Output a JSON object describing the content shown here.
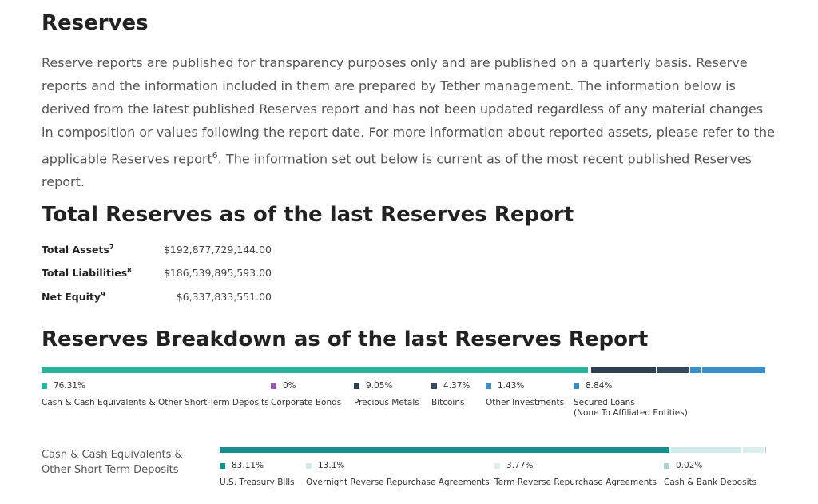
{
  "header": {
    "title": "Reserves"
  },
  "intro": {
    "parts": [
      "Reserve reports are published for transparency purposes only and are published on a quarterly basis. Reserve reports and the information included in them are prepared by Tether management. The information below is derived from the latest published Reserves report and has not been updated regardless of any material changes in composition or values following the report date.  For more information about reported assets, please refer to the applicable Reserves report",
      "6",
      ". The information set out below is current as of the most recent published Reserves report."
    ]
  },
  "totals": {
    "title": "Total Reserves as of the last Reserves Report",
    "rows": [
      {
        "label": "Total Assets",
        "note": "7",
        "value": "$192,877,729,144.00"
      },
      {
        "label": "Total Liabilities",
        "note": "8",
        "value": "$186,539,895,593.00"
      },
      {
        "label": "Net Equity",
        "note": "9",
        "value": "$6,337,833,551.00"
      }
    ]
  },
  "breakdown": {
    "title": "Reserves Breakdown as of the last Reserves Report"
  },
  "chart_data": [
    {
      "type": "stacked-bar",
      "categories": [
        "Cash & Cash Equivalents & Other Short-Term Deposits",
        "Corporate Bonds",
        "Precious Metals",
        "Bitcoins",
        "Other Investments",
        "Secured Loans\n(None To Affiliated Entities)"
      ],
      "values": [
        76.31,
        0,
        9.05,
        4.37,
        1.43,
        8.84
      ],
      "value_labels": [
        "76.31%",
        "0%",
        "9.05%",
        "4.37%",
        "1.43%",
        "8.84%"
      ],
      "colors": [
        "#2ab39b",
        "#9b59b6",
        "#2c3e50",
        "#34495e",
        "#3b8fc7"
      ]
    },
    {
      "type": "stacked-bar",
      "title": "Cash & Cash Equivalents &\nOther Short-Term Deposits",
      "categories": [
        "U.S. Treasury Bills",
        "Overnight Reverse Repurchase Agreements",
        "Term Reverse Repurchase Agreements",
        "Cash & Bank Deposits"
      ],
      "values": [
        83.11,
        13.1,
        3.77,
        0.02
      ],
      "value_labels": [
        "83.11%",
        "13.1%",
        "3.77%",
        "0.02%"
      ],
      "colors": [
        "#15908f",
        "#d0e9e9",
        "#dcefef",
        "#a7d3d6"
      ]
    }
  ]
}
